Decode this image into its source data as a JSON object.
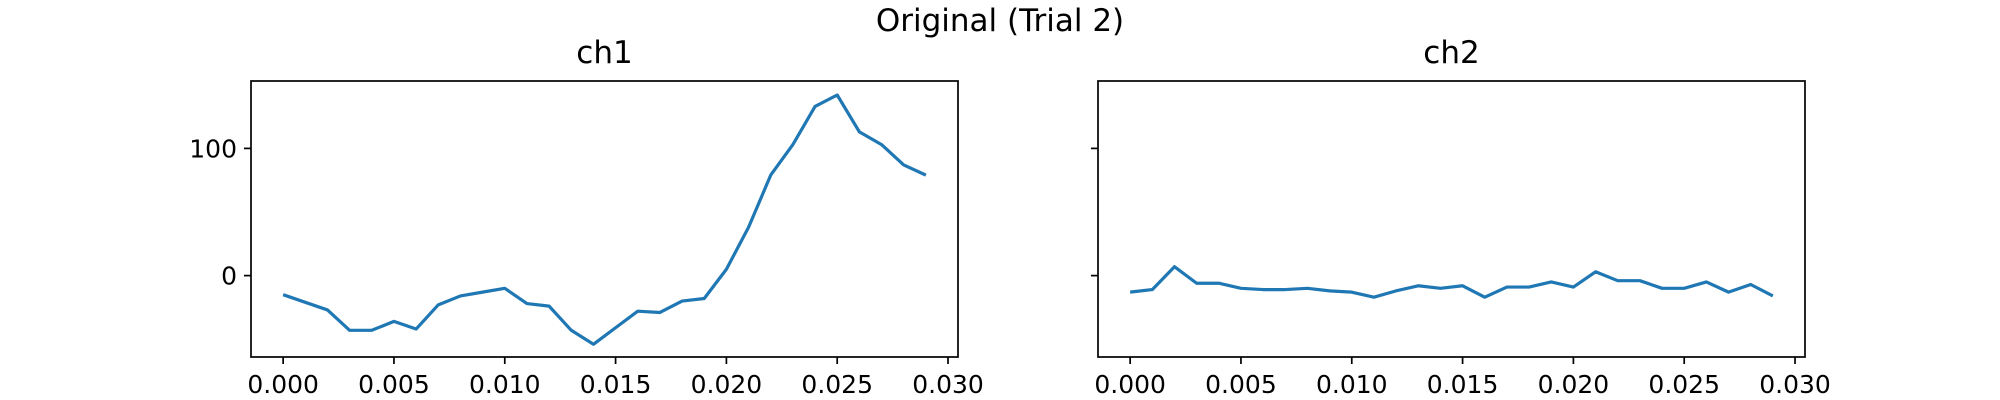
{
  "figure": {
    "suptitle": "Original (Trial 2)",
    "line_color": "#1f77b4"
  },
  "chart_data": [
    {
      "type": "line",
      "title": "ch1",
      "xlabel": "",
      "ylabel": "",
      "xlim": [
        -0.00145,
        0.03045
      ],
      "ylim": [
        -64,
        153
      ],
      "xticks": [
        0.0,
        0.005,
        0.01,
        0.015,
        0.02,
        0.025,
        0.03
      ],
      "xtick_labels": [
        "0.000",
        "0.005",
        "0.010",
        "0.015",
        "0.020",
        "0.025",
        "0.030"
      ],
      "yticks": [
        0,
        100
      ],
      "ytick_labels": [
        "0",
        "100"
      ],
      "grid": false,
      "series": [
        {
          "x": [
            0.0,
            0.001,
            0.002,
            0.003,
            0.004,
            0.005,
            0.006,
            0.007,
            0.008,
            0.009,
            0.01,
            0.011,
            0.012,
            0.013,
            0.014,
            0.015,
            0.016,
            0.017,
            0.018,
            0.019,
            0.02,
            0.021,
            0.022,
            0.023,
            0.024,
            0.025,
            0.026,
            0.027,
            0.028,
            0.029
          ],
          "y": [
            -15,
            -21,
            -27,
            -43,
            -43,
            -36,
            -42,
            -23,
            -16,
            -13,
            -10,
            -22,
            -24,
            -43,
            -54,
            -41,
            -28,
            -29,
            -20,
            -18,
            5,
            38,
            79,
            103,
            133,
            142,
            113,
            103,
            87,
            79
          ]
        }
      ]
    },
    {
      "type": "line",
      "title": "ch2",
      "xlabel": "",
      "ylabel": "",
      "xlim": [
        -0.00145,
        0.03045
      ],
      "ylim": [
        -64,
        153
      ],
      "xticks": [
        0.0,
        0.005,
        0.01,
        0.015,
        0.02,
        0.025,
        0.03
      ],
      "xtick_labels": [
        "0.000",
        "0.005",
        "0.010",
        "0.015",
        "0.020",
        "0.025",
        "0.030"
      ],
      "yticks": [
        0,
        100
      ],
      "ytick_labels": [
        "",
        ""
      ],
      "grid": false,
      "series": [
        {
          "x": [
            0.0,
            0.001,
            0.002,
            0.003,
            0.004,
            0.005,
            0.006,
            0.007,
            0.008,
            0.009,
            0.01,
            0.011,
            0.012,
            0.013,
            0.014,
            0.015,
            0.016,
            0.017,
            0.018,
            0.019,
            0.02,
            0.021,
            0.022,
            0.023,
            0.024,
            0.025,
            0.026,
            0.027,
            0.028,
            0.029
          ],
          "y": [
            -13,
            -11,
            7,
            -6,
            -6,
            -10,
            -11,
            -11,
            -10,
            -12,
            -13,
            -17,
            -12,
            -8,
            -10,
            -8,
            -17,
            -9,
            -9,
            -5,
            -9,
            3,
            -4,
            -4,
            -10,
            -10,
            -5,
            -13,
            -7,
            -16
          ]
        }
      ]
    }
  ]
}
